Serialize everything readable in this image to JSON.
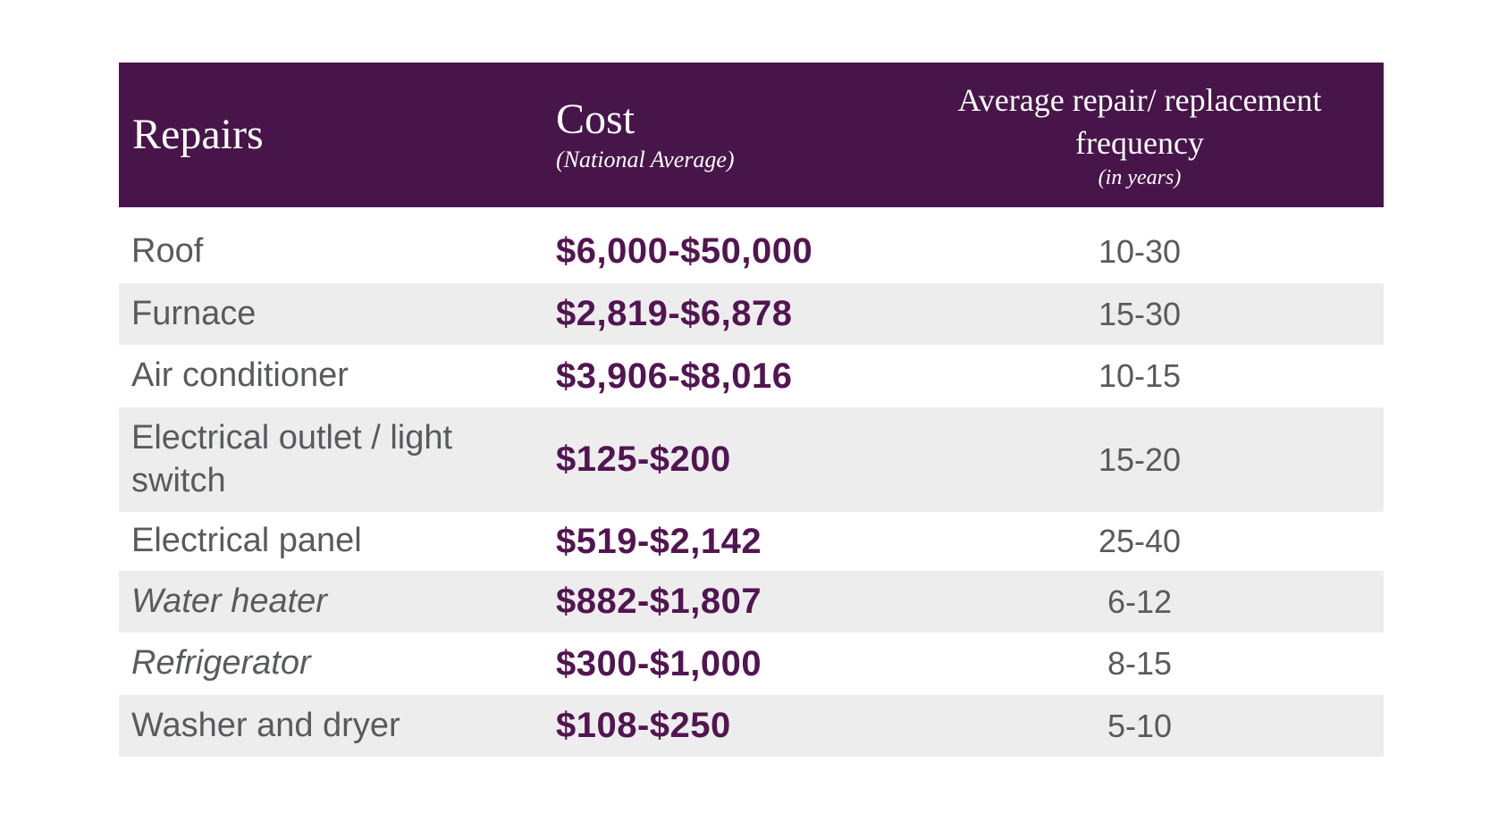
{
  "colors": {
    "header_background": "#471549",
    "header_text": "#FFFFFF",
    "cost_value_text": "#521551",
    "row_text": "#595A5C",
    "alternate_row_background": "#EDEDED",
    "page_background": "#FFFFFF"
  },
  "table": {
    "header": {
      "repairs": {
        "title": "Repairs"
      },
      "cost": {
        "title": "Cost",
        "subtitle": "(National Average)"
      },
      "frequency": {
        "title": "Average repair/ replacement frequency",
        "subtitle": "(in years)"
      }
    },
    "rows": [
      {
        "repair": "Roof",
        "cost": "$6,000-$50,000",
        "frequency": "10-30",
        "italic": false
      },
      {
        "repair": "Furnace",
        "cost": "$2,819-$6,878",
        "frequency": "15-30",
        "italic": false
      },
      {
        "repair": "Air conditioner",
        "cost": "$3,906-$8,016",
        "frequency": "10-15",
        "italic": false
      },
      {
        "repair": "Electrical outlet / light switch",
        "cost": "$125-$200",
        "frequency": "15-20",
        "italic": false
      },
      {
        "repair": "Electrical panel",
        "cost": "$519-$2,142",
        "frequency": "25-40",
        "italic": false
      },
      {
        "repair": "Water heater",
        "cost": "$882-$1,807",
        "frequency": "6-12",
        "italic": true
      },
      {
        "repair": "Refrigerator",
        "cost": "$300-$1,000",
        "frequency": "8-15",
        "italic": true
      },
      {
        "repair": "Washer and dryer",
        "cost": "$108-$250",
        "frequency": "5-10",
        "italic": false
      }
    ]
  },
  "chart_data": {
    "type": "table",
    "columns": [
      "Repairs",
      "Cost (National Average)",
      "Average repair/replacement frequency (in years)"
    ],
    "rows": [
      [
        "Roof",
        "$6,000-$50,000",
        "10-30"
      ],
      [
        "Furnace",
        "$2,819-$6,878",
        "15-30"
      ],
      [
        "Air conditioner",
        "$3,906-$8,016",
        "10-15"
      ],
      [
        "Electrical outlet / light switch",
        "$125-$200",
        "15-20"
      ],
      [
        "Electrical panel",
        "$519-$2,142",
        "25-40"
      ],
      [
        "Water heater",
        "$882-$1,807",
        "6-12"
      ],
      [
        "Refrigerator",
        "$300-$1,000",
        "8-15"
      ],
      [
        "Washer and dryer",
        "$108-$250",
        "5-10"
      ]
    ]
  }
}
